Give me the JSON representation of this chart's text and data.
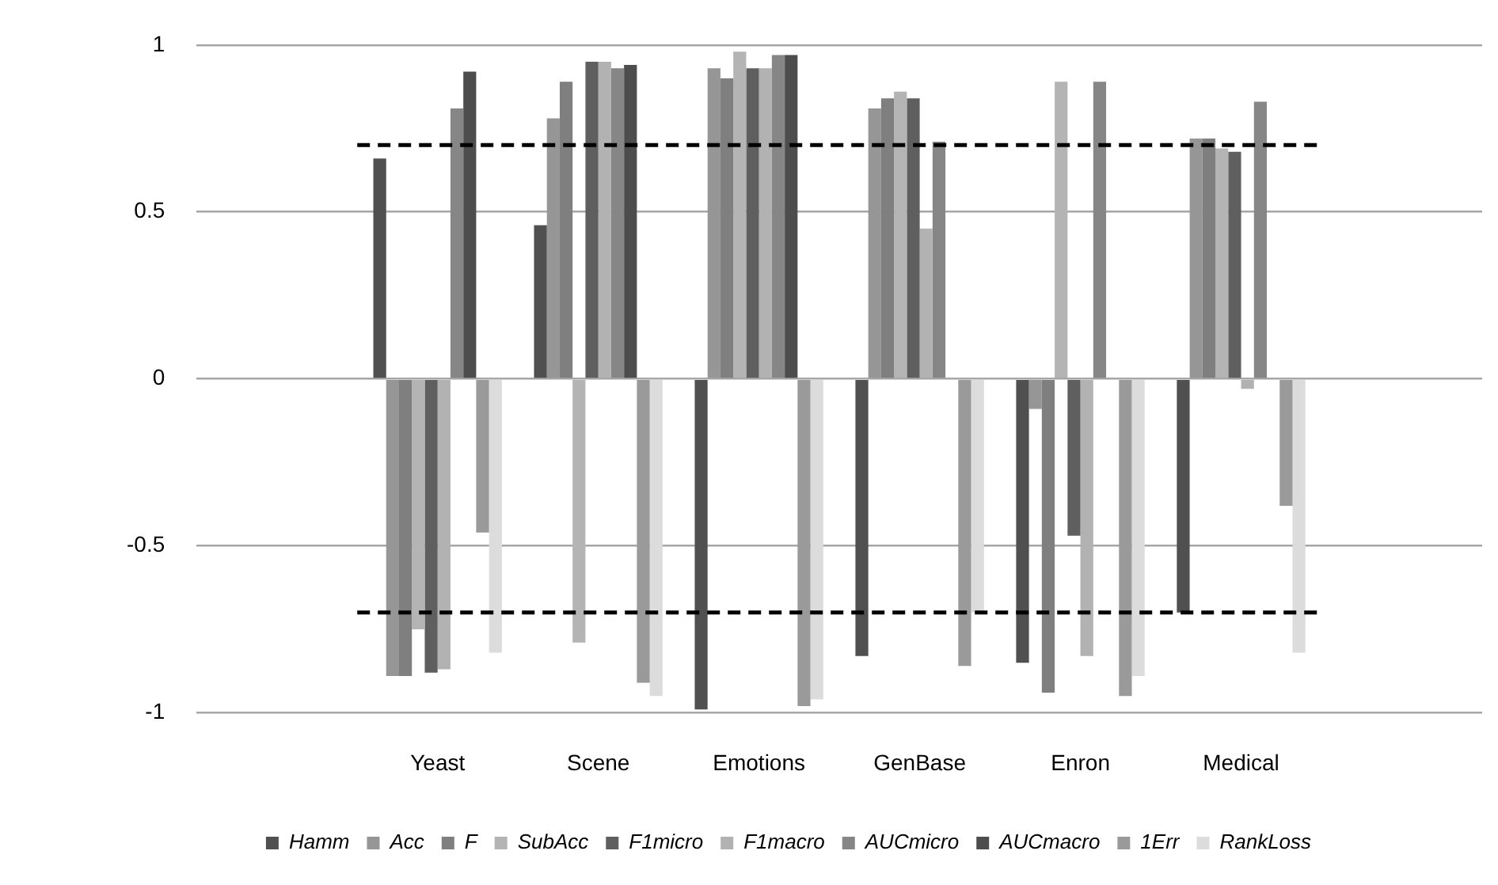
{
  "chart_data": {
    "type": "bar",
    "categories": [
      null,
      "Yeast",
      "Scene",
      "Emotions",
      "GenBase",
      "Enron",
      "Medical",
      null
    ],
    "series": [
      {
        "name": "Hamm",
        "color": "#505050",
        "values": [
          null,
          0.66,
          0.46,
          -0.99,
          -0.83,
          -0.85,
          -0.7,
          null
        ]
      },
      {
        "name": "Acc",
        "color": "#969696",
        "values": [
          null,
          -0.89,
          0.78,
          0.93,
          0.81,
          -0.09,
          0.72,
          null
        ]
      },
      {
        "name": "F",
        "color": "#7f7f7f",
        "values": [
          null,
          -0.89,
          0.89,
          0.9,
          0.84,
          -0.94,
          0.72,
          null
        ]
      },
      {
        "name": "SubAcc",
        "color": "#b4b4b4",
        "values": [
          null,
          -0.75,
          -0.79,
          0.98,
          0.86,
          0.89,
          0.69,
          null
        ]
      },
      {
        "name": "F1micro",
        "color": "#5f5f5f",
        "values": [
          null,
          -0.88,
          0.95,
          0.93,
          0.84,
          -0.47,
          0.68,
          null
        ]
      },
      {
        "name": "F1macro",
        "color": "#b2b2b2",
        "values": [
          null,
          -0.87,
          0.95,
          0.93,
          0.45,
          -0.83,
          -0.03,
          null
        ]
      },
      {
        "name": "AUCmicro",
        "color": "#868686",
        "values": [
          null,
          0.81,
          0.93,
          0.97,
          0.71,
          0.89,
          0.83,
          null
        ]
      },
      {
        "name": "AUCmacro",
        "color": "#4d4d4d",
        "values": [
          null,
          0.92,
          0.94,
          0.97,
          0,
          0,
          0,
          null
        ]
      },
      {
        "name": "1Err",
        "color": "#9a9a9a",
        "values": [
          null,
          -0.46,
          -0.91,
          -0.98,
          -0.86,
          -0.95,
          -0.38,
          null
        ]
      },
      {
        "name": "RankLoss",
        "color": "#dcdcdc",
        "values": [
          null,
          -0.82,
          -0.95,
          -0.96,
          -0.7,
          -0.89,
          -0.82,
          null
        ]
      }
    ],
    "ylim": [
      -1,
      1
    ],
    "yticks": [
      -1,
      -0.5,
      0,
      0.5,
      1
    ],
    "grid": "y",
    "legend": "bottom",
    "ref_lines": [
      {
        "axis": "y",
        "value": 0.7,
        "color": "#000000",
        "line_style": "dashed"
      },
      {
        "axis": "y",
        "value": -0.7,
        "color": "#000000",
        "line_style": "dashed"
      }
    ]
  }
}
